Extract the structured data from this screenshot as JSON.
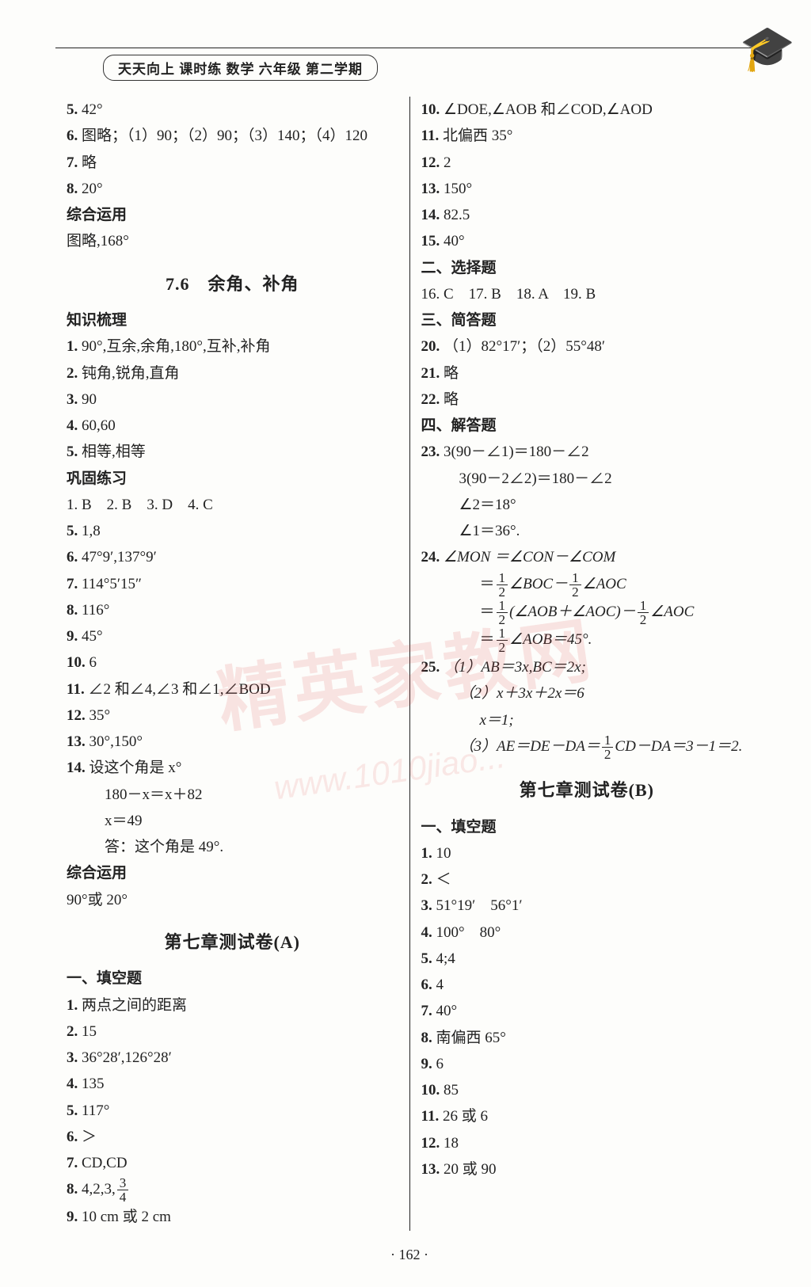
{
  "header": "天天向上 课时练 数学 六年级 第二学期",
  "page_number": "· 162 ·",
  "watermark_main": "精英家教网",
  "watermark_sub": "www.1010jiao...",
  "left": {
    "top": [
      {
        "n": "5.",
        "t": "42°"
      },
      {
        "n": "6.",
        "t": "图略；（1）90；（2）90；（3）140；（4）120"
      },
      {
        "n": "7.",
        "t": "略"
      },
      {
        "n": "8.",
        "t": "20°"
      }
    ],
    "zh_label": "综合运用",
    "zh_text": "图略,168°",
    "sec76": "7.6　余角、补角",
    "zsll_label": "知识梳理",
    "zsll": [
      {
        "n": "1.",
        "t": "90°,互余,余角,180°,互补,补角"
      },
      {
        "n": "2.",
        "t": "钝角,锐角,直角"
      },
      {
        "n": "3.",
        "t": "90"
      },
      {
        "n": "4.",
        "t": "60,60"
      },
      {
        "n": "5.",
        "t": "相等,相等"
      }
    ],
    "gglx_label": "巩固练习",
    "gglx_row1": "1. B　2. B　3. D　4. C",
    "gglx": [
      {
        "n": "5.",
        "t": "1,8"
      },
      {
        "n": "6.",
        "t": "47°9′,137°9′"
      },
      {
        "n": "7.",
        "t": "114°5′15″"
      },
      {
        "n": "8.",
        "t": "116°"
      },
      {
        "n": "9.",
        "t": "45°"
      },
      {
        "n": "10.",
        "t": "6"
      },
      {
        "n": "11.",
        "t": "∠2 和∠4,∠3 和∠1,∠BOD"
      },
      {
        "n": "12.",
        "t": "35°"
      },
      {
        "n": "13.",
        "t": "30°,150°"
      }
    ],
    "gglx14n": "14.",
    "gglx14a": "设这个角是 x°",
    "gglx14b": "180－x＝x＋82",
    "gglx14c": "x＝49",
    "gglx14d": "答：这个角是 49°.",
    "zhyy_label": "综合运用",
    "zhyy": "90°或 20°",
    "testA": "第七章测试卷(A)",
    "tkA_label": "一、填空题",
    "tkA": [
      {
        "n": "1.",
        "t": "两点之间的距离"
      },
      {
        "n": "2.",
        "t": "15"
      },
      {
        "n": "3.",
        "t": "36°28′,126°28′"
      },
      {
        "n": "4.",
        "t": "135"
      },
      {
        "n": "5.",
        "t": "117°"
      },
      {
        "n": "6.",
        "t": "＞"
      },
      {
        "n": "7.",
        "t": "CD,CD"
      }
    ],
    "tkA8n": "8.",
    "tkA8t": "4,2,3,",
    "tkA8fn": "3",
    "tkA8fd": "4",
    "tkA9": {
      "n": "9.",
      "t": "10 cm 或 2 cm"
    }
  },
  "right": {
    "top": [
      {
        "n": "10.",
        "t": "∠DOE,∠AOB 和∠COD,∠AOD"
      },
      {
        "n": "11.",
        "t": "北偏西 35°"
      },
      {
        "n": "12.",
        "t": "2"
      },
      {
        "n": "13.",
        "t": "150°"
      },
      {
        "n": "14.",
        "t": "82.5"
      },
      {
        "n": "15.",
        "t": "40°"
      }
    ],
    "xz_label": "二、选择题",
    "xz_row": "16. C　17. B　18. A　19. B",
    "jd_label": "三、简答题",
    "q20": {
      "n": "20.",
      "t": "（1）82°17′；（2）55°48′"
    },
    "q21": {
      "n": "21.",
      "t": "略"
    },
    "q22": {
      "n": "22.",
      "t": "略"
    },
    "jdt_label": "四、解答题",
    "q23n": "23.",
    "q23a": "3(90－∠1)＝180－∠2",
    "q23b": "3(90－2∠2)＝180－∠2",
    "q23c": "∠2＝18°",
    "q23d": "∠1＝36°.",
    "q24n": "24.",
    "q24a": "∠MON ＝∠CON－∠COM",
    "q24b_pre": "＝",
    "q24b_mid": "∠BOC－",
    "q24b_suf": "∠AOC",
    "q24c_pre": "＝",
    "q24c_mid": "(∠AOB＋∠AOC)－",
    "q24c_suf": "∠AOC",
    "q24d_pre": "＝",
    "q24d_suf": "∠AOB＝45°.",
    "half_n": "1",
    "half_d": "2",
    "q25n": "25.",
    "q25a": "（1）AB＝3x,BC＝2x;",
    "q25b": "（2）x＋3x＋2x＝6",
    "q25c": "x＝1;",
    "q25d_pre": "（3）AE＝DE－DA＝",
    "q25d_suf": "CD－DA＝3－1＝2.",
    "testB": "第七章测试卷(B)",
    "tkB_label": "一、填空题",
    "tkB": [
      {
        "n": "1.",
        "t": "10"
      },
      {
        "n": "2.",
        "t": "＜"
      },
      {
        "n": "3.",
        "t": "51°19′　56°1′"
      },
      {
        "n": "4.",
        "t": "100°　80°"
      },
      {
        "n": "5.",
        "t": "4;4"
      },
      {
        "n": "6.",
        "t": "4"
      },
      {
        "n": "7.",
        "t": "40°"
      },
      {
        "n": "8.",
        "t": "南偏西 65°"
      },
      {
        "n": "9.",
        "t": "6"
      },
      {
        "n": "10.",
        "t": "85"
      },
      {
        "n": "11.",
        "t": "26 或 6"
      },
      {
        "n": "12.",
        "t": "18"
      },
      {
        "n": "13.",
        "t": "20 或 90"
      }
    ]
  }
}
